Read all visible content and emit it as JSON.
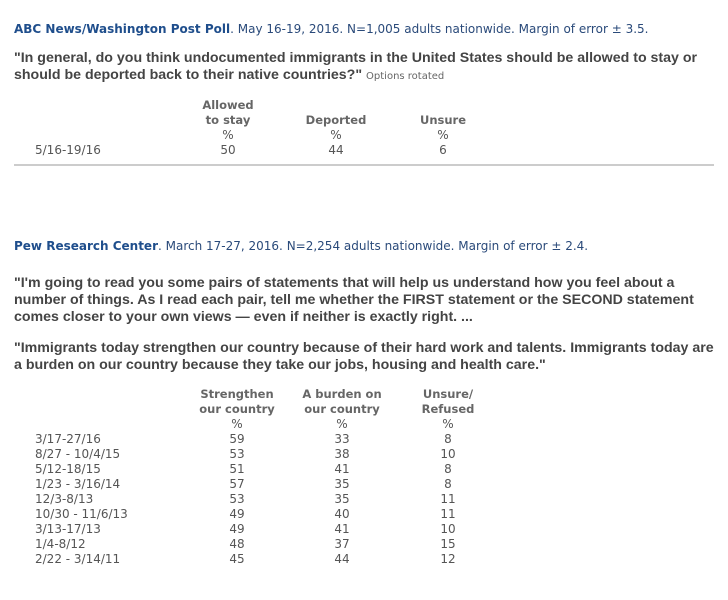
{
  "abc": {
    "source": "ABC News/Washington Post Poll",
    "details": ". May 16-19, 2016. N=1,005 adults nationwide. Margin of error ± 3.5.",
    "question": "\"In general, do you think undocumented immigrants in the United States should be allowed to stay or should be deported back to their native countries?\"",
    "note": "Options rotated",
    "columns": [
      [
        "Allowed",
        "to stay"
      ],
      [
        "",
        "Deported"
      ],
      [
        "",
        "Unsure"
      ]
    ],
    "unit": "%",
    "rows": [
      {
        "date": "5/16-19/16",
        "values": [
          "50",
          "44",
          "6"
        ]
      }
    ]
  },
  "pew": {
    "source": "Pew Research Center",
    "details": ". March 17-27, 2016. N=2,254 adults nationwide. Margin of error ± 2.4.",
    "intro": "\"I'm going to read you some pairs of statements that will help us understand how you feel about a number of things. As I read each pair, tell me whether the FIRST statement or the SECOND statement comes closer to your own views — even if neither is exactly right. ...",
    "question": "\"Immigrants today strengthen our country because of their hard work and talents. Immigrants today are a burden on our country because they take our jobs, housing and health care.\"",
    "columns": [
      [
        "Strengthen",
        "our country"
      ],
      [
        "A burden on",
        "our country"
      ],
      [
        "Unsure/",
        "Refused"
      ]
    ],
    "unit": "%",
    "rows": [
      {
        "date": "3/17-27/16",
        "values": [
          "59",
          "33",
          "8"
        ]
      },
      {
        "date": "8/27 - 10/4/15",
        "values": [
          "53",
          "38",
          "10"
        ]
      },
      {
        "date": "5/12-18/15",
        "values": [
          "51",
          "41",
          "8"
        ]
      },
      {
        "date": "1/23 - 3/16/14",
        "values": [
          "57",
          "35",
          "8"
        ]
      },
      {
        "date": "12/3-8/13",
        "values": [
          "53",
          "35",
          "11"
        ]
      },
      {
        "date": "10/30 - 11/6/13",
        "values": [
          "49",
          "40",
          "11"
        ]
      },
      {
        "date": "3/13-17/13",
        "values": [
          "49",
          "41",
          "10"
        ]
      },
      {
        "date": "1/4-8/12",
        "values": [
          "48",
          "37",
          "15"
        ]
      },
      {
        "date": "2/22 - 3/14/11",
        "values": [
          "45",
          "44",
          "12"
        ]
      }
    ]
  }
}
